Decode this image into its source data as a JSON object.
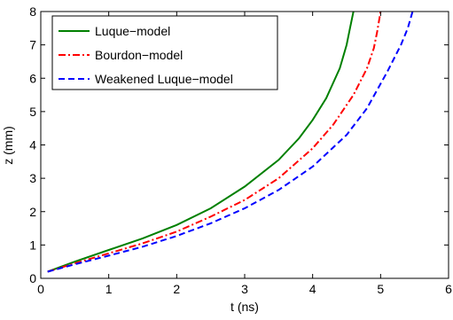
{
  "chart_data": {
    "type": "line",
    "title": "",
    "xlabel": "t (ns)",
    "ylabel": "z (mm)",
    "xlim": [
      0,
      6
    ],
    "ylim": [
      0,
      8
    ],
    "xticks": [
      0,
      1,
      2,
      3,
      4,
      5,
      6
    ],
    "yticks": [
      0,
      1,
      2,
      3,
      4,
      5,
      6,
      7,
      8
    ],
    "grid": false,
    "legend_position": "top-left",
    "series": [
      {
        "name": "Luque−model",
        "color": "#008000",
        "dash": "solid",
        "x": [
          0.1,
          0.5,
          1.0,
          1.5,
          2.0,
          2.5,
          3.0,
          3.5,
          3.8,
          4.0,
          4.2,
          4.4,
          4.5,
          4.55,
          4.6
        ],
        "y": [
          0.2,
          0.5,
          0.85,
          1.2,
          1.6,
          2.1,
          2.75,
          3.55,
          4.2,
          4.75,
          5.4,
          6.3,
          7.0,
          7.5,
          8.0
        ]
      },
      {
        "name": "Bourdon−model",
        "color": "#ff0000",
        "dash": "dashdot",
        "x": [
          0.1,
          0.5,
          1.0,
          1.5,
          2.0,
          2.5,
          3.0,
          3.5,
          4.0,
          4.3,
          4.6,
          4.8,
          4.9,
          4.95,
          5.0
        ],
        "y": [
          0.2,
          0.45,
          0.75,
          1.05,
          1.4,
          1.85,
          2.35,
          3.0,
          3.9,
          4.6,
          5.5,
          6.3,
          6.9,
          7.4,
          8.0
        ]
      },
      {
        "name": "Weakened Luque−model",
        "color": "#0000ff",
        "dash": "dashed",
        "x": [
          0.1,
          0.5,
          1.0,
          1.5,
          2.0,
          2.5,
          3.0,
          3.5,
          4.0,
          4.5,
          4.8,
          5.1,
          5.3,
          5.4,
          5.47
        ],
        "y": [
          0.2,
          0.42,
          0.68,
          0.95,
          1.27,
          1.65,
          2.1,
          2.65,
          3.35,
          4.3,
          5.1,
          6.2,
          7.0,
          7.5,
          8.0
        ]
      }
    ]
  }
}
